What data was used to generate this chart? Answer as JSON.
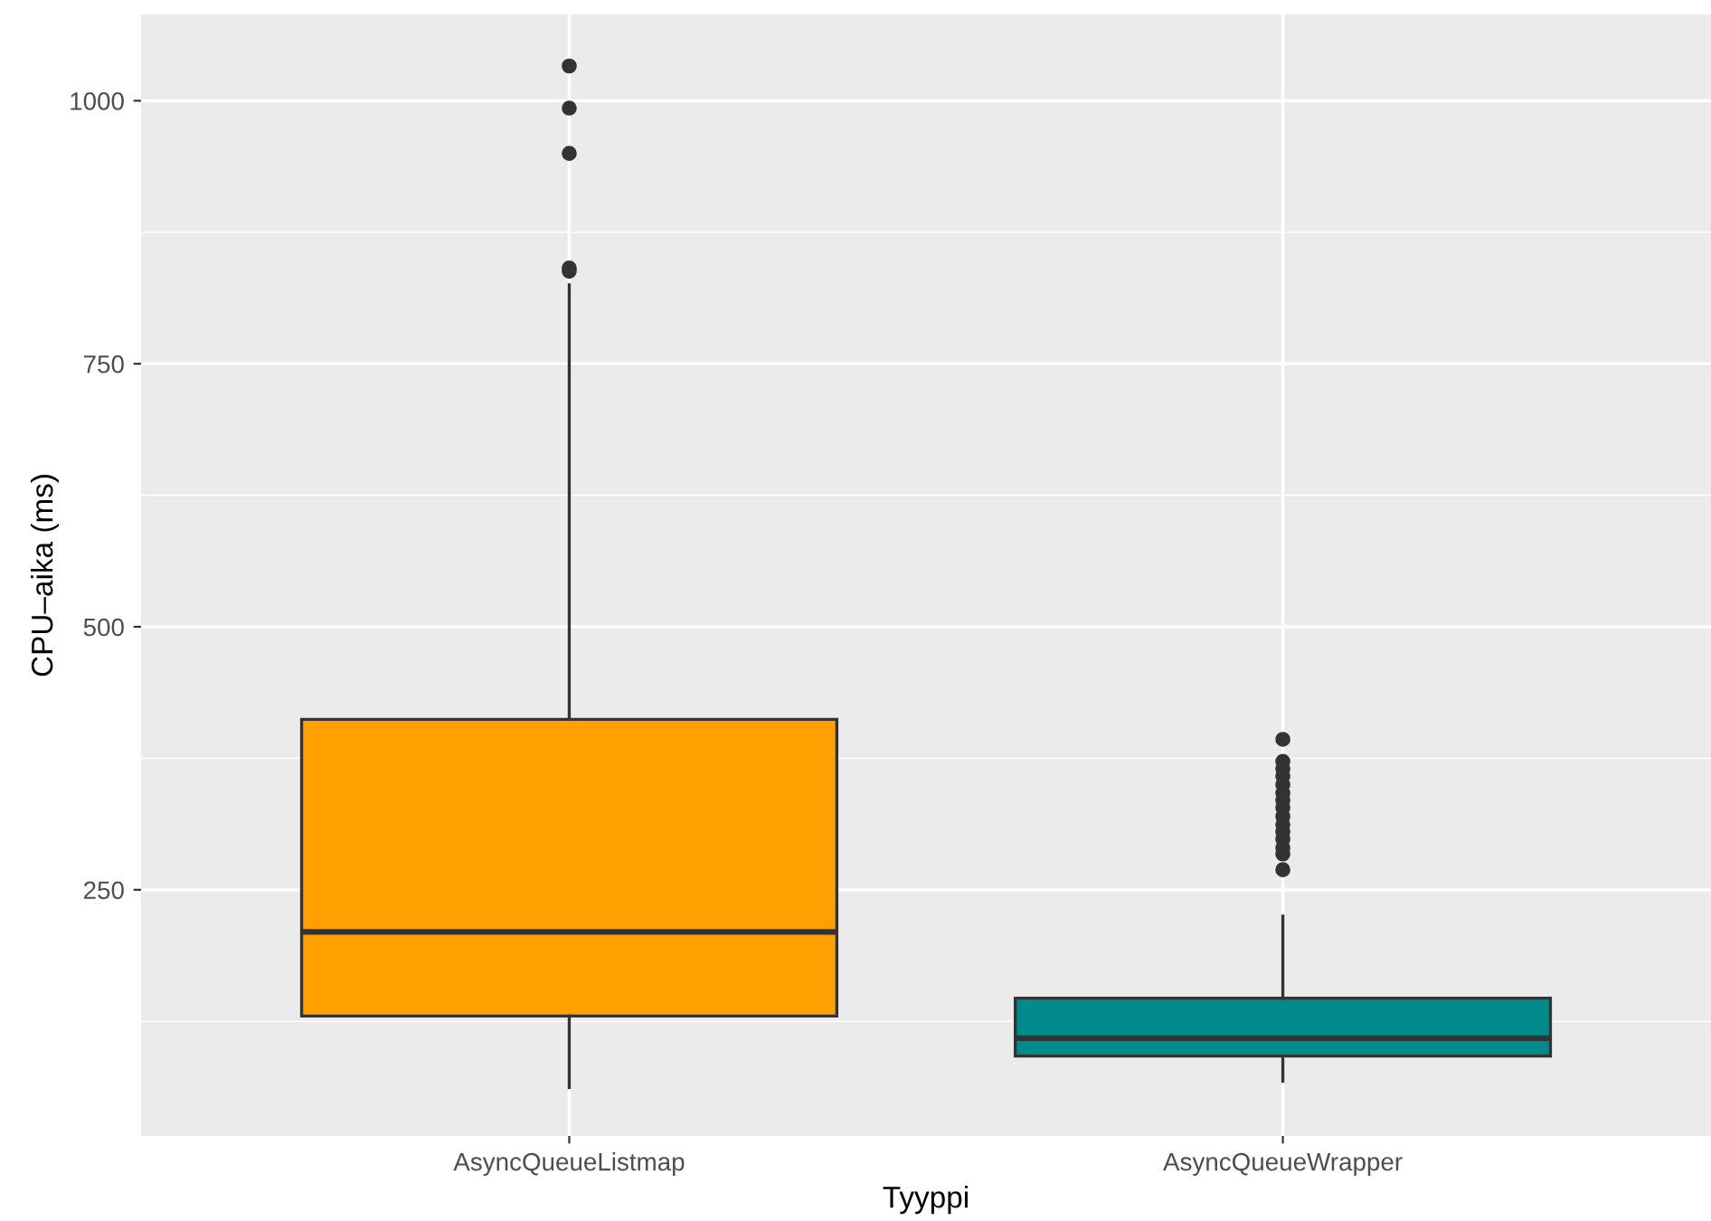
{
  "chart_data": {
    "type": "box",
    "xlabel": "Tyyppi",
    "ylabel": "CPU–aika (ms)",
    "categories": [
      "AsyncQueueListmap",
      "AsyncQueueWrapper"
    ],
    "colors": [
      "#ffa000",
      "#008b8b"
    ],
    "boxes": [
      {
        "low": 62,
        "q1": 130,
        "median": 210,
        "q3": 412,
        "high": 825,
        "outliers": [
          838,
          841,
          950,
          993,
          1033
        ]
      },
      {
        "low": 68,
        "q1": 92,
        "median": 109,
        "q3": 147,
        "high": 225,
        "outliers": [
          269,
          284,
          290,
          298,
          305,
          312,
          320,
          328,
          335,
          342,
          350,
          358,
          365,
          372,
          393
        ]
      }
    ],
    "ylim": [
      16,
      1082
    ],
    "yticks": [
      250,
      500,
      750,
      1000
    ],
    "grid": true
  }
}
